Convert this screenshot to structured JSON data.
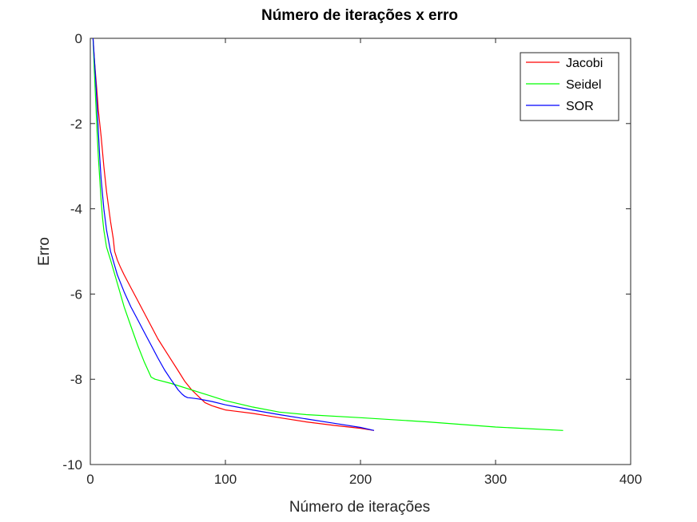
{
  "chart_data": {
    "type": "line",
    "title": "Número de iterações x erro",
    "xlabel": "Número de iterações",
    "ylabel": "Erro",
    "xlim": [
      0,
      400
    ],
    "ylim": [
      -10,
      0
    ],
    "xticks": [
      "0",
      "100",
      "200",
      "300",
      "400"
    ],
    "yticks": [
      "0",
      "-2",
      "-4",
      "-6",
      "-8",
      "-10"
    ],
    "grid": false,
    "legend": "top-right",
    "series": [
      {
        "name": "Jacobi",
        "color": "#ff0000",
        "x": [
          2,
          3,
          4,
          5,
          6,
          8,
          10,
          12,
          15,
          17,
          18,
          20,
          22,
          25,
          30,
          35,
          40,
          45,
          50,
          55,
          60,
          65,
          70,
          75,
          80,
          85,
          90,
          95,
          100,
          105,
          120,
          140,
          160,
          180,
          200,
          210
        ],
        "y": [
          0,
          -0.5,
          -0.9,
          -1.3,
          -1.7,
          -2.3,
          -3.0,
          -3.6,
          -4.3,
          -4.7,
          -5.0,
          -5.2,
          -5.35,
          -5.55,
          -5.85,
          -6.15,
          -6.45,
          -6.75,
          -7.05,
          -7.3,
          -7.55,
          -7.8,
          -8.05,
          -8.25,
          -8.4,
          -8.55,
          -8.62,
          -8.67,
          -8.72,
          -8.74,
          -8.8,
          -8.9,
          -9.0,
          -9.08,
          -9.15,
          -9.2
        ]
      },
      {
        "name": "Seidel",
        "color": "#00ff00",
        "x": [
          2,
          3,
          4,
          5,
          6,
          7,
          8,
          9,
          10,
          12,
          15,
          20,
          25,
          30,
          35,
          40,
          45,
          48,
          60,
          80,
          100,
          120,
          140,
          160,
          200,
          250,
          300,
          350
        ],
        "y": [
          0,
          -0.8,
          -1.5,
          -2.2,
          -2.8,
          -3.3,
          -3.8,
          -4.2,
          -4.5,
          -4.9,
          -5.2,
          -5.75,
          -6.3,
          -6.75,
          -7.2,
          -7.6,
          -7.95,
          -8.0,
          -8.1,
          -8.3,
          -8.5,
          -8.65,
          -8.77,
          -8.83,
          -8.9,
          -9.0,
          -9.12,
          -9.2
        ]
      },
      {
        "name": "SOR",
        "color": "#0000ff",
        "x": [
          2,
          3,
          4,
          5,
          6,
          7,
          8,
          10,
          12,
          15,
          20,
          25,
          30,
          35,
          40,
          45,
          50,
          55,
          60,
          65,
          68,
          70,
          72,
          75,
          80,
          90,
          100,
          120,
          140,
          160,
          180,
          200,
          210
        ],
        "y": [
          0,
          -0.5,
          -1.0,
          -1.6,
          -2.2,
          -2.8,
          -3.3,
          -4.0,
          -4.5,
          -5.0,
          -5.55,
          -5.95,
          -6.3,
          -6.6,
          -6.9,
          -7.2,
          -7.5,
          -7.78,
          -8.02,
          -8.25,
          -8.35,
          -8.4,
          -8.43,
          -8.44,
          -8.46,
          -8.52,
          -8.6,
          -8.72,
          -8.83,
          -8.93,
          -9.03,
          -9.13,
          -9.2
        ]
      }
    ]
  }
}
